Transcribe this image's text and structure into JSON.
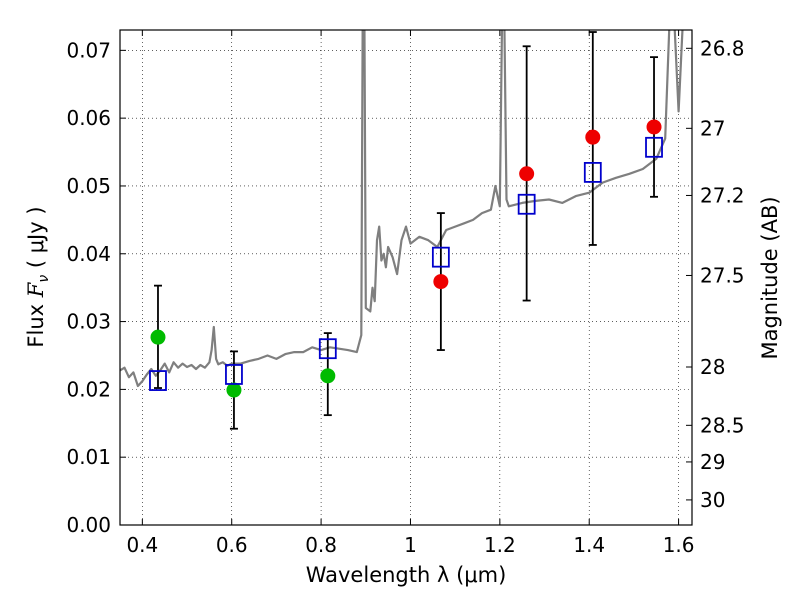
{
  "chart_data": {
    "type": "scatter",
    "xlabel": "Wavelength  λ (μm)",
    "ylabel_left_prefix": "Flux ",
    "ylabel_left_symbol": "F",
    "ylabel_left_sub": "ν",
    "ylabel_left_unit": " ( μJy )",
    "ylabel_right": "Magnitude (AB)",
    "xlim": [
      0.35,
      1.63
    ],
    "ylim": [
      0.0,
      0.073
    ],
    "xticks": [
      {
        "value": 0.4,
        "label": "0.4"
      },
      {
        "value": 0.6,
        "label": "0.6"
      },
      {
        "value": 0.8,
        "label": "0.8"
      },
      {
        "value": 1.0,
        "label": "1"
      },
      {
        "value": 1.2,
        "label": "1.2"
      },
      {
        "value": 1.4,
        "label": "1.4"
      },
      {
        "value": 1.6,
        "label": "1.6"
      }
    ],
    "yticks": [
      {
        "value": 0.0,
        "label": "0.00"
      },
      {
        "value": 0.01,
        "label": "0.01"
      },
      {
        "value": 0.02,
        "label": "0.02"
      },
      {
        "value": 0.03,
        "label": "0.03"
      },
      {
        "value": 0.04,
        "label": "0.04"
      },
      {
        "value": 0.05,
        "label": "0.05"
      },
      {
        "value": 0.06,
        "label": "0.06"
      },
      {
        "value": 0.07,
        "label": "0.07"
      }
    ],
    "right_ticks": [
      {
        "label": "26.8",
        "flux": 0.0703
      },
      {
        "label": "27",
        "flux": 0.0585
      },
      {
        "label": "27.2",
        "flux": 0.0486
      },
      {
        "label": "27.5",
        "flux": 0.0368
      },
      {
        "label": "28",
        "flux": 0.0233
      },
      {
        "label": "28.5",
        "flux": 0.0147
      },
      {
        "label": "29",
        "flux": 0.0093
      },
      {
        "label": "30",
        "flux": 0.0037
      }
    ],
    "grid": true,
    "template_spectrum": {
      "color": "#7f7f7f",
      "points": [
        [
          0.35,
          0.0228
        ],
        [
          0.36,
          0.0232
        ],
        [
          0.37,
          0.0218
        ],
        [
          0.38,
          0.0225
        ],
        [
          0.39,
          0.0205
        ],
        [
          0.4,
          0.0212
        ],
        [
          0.41,
          0.0222
        ],
        [
          0.42,
          0.023
        ],
        [
          0.43,
          0.022
        ],
        [
          0.44,
          0.0228
        ],
        [
          0.45,
          0.0238
        ],
        [
          0.46,
          0.0225
        ],
        [
          0.47,
          0.024
        ],
        [
          0.48,
          0.0232
        ],
        [
          0.49,
          0.0238
        ],
        [
          0.5,
          0.0233
        ],
        [
          0.51,
          0.0236
        ],
        [
          0.52,
          0.023
        ],
        [
          0.53,
          0.0236
        ],
        [
          0.54,
          0.0232
        ],
        [
          0.55,
          0.024
        ],
        [
          0.555,
          0.0258
        ],
        [
          0.56,
          0.0292
        ],
        [
          0.565,
          0.0245
        ],
        [
          0.57,
          0.0237
        ],
        [
          0.58,
          0.024
        ],
        [
          0.59,
          0.0235
        ],
        [
          0.6,
          0.0238
        ],
        [
          0.62,
          0.0238
        ],
        [
          0.64,
          0.0242
        ],
        [
          0.66,
          0.0245
        ],
        [
          0.68,
          0.025
        ],
        [
          0.7,
          0.0245
        ],
        [
          0.72,
          0.0252
        ],
        [
          0.74,
          0.0255
        ],
        [
          0.76,
          0.0255
        ],
        [
          0.78,
          0.0262
        ],
        [
          0.8,
          0.0258
        ],
        [
          0.82,
          0.0262
        ],
        [
          0.84,
          0.026
        ],
        [
          0.86,
          0.0258
        ],
        [
          0.88,
          0.0255
        ],
        [
          0.89,
          0.028
        ],
        [
          0.893,
          0.075
        ],
        [
          0.897,
          0.075
        ],
        [
          0.9,
          0.032
        ],
        [
          0.91,
          0.0315
        ],
        [
          0.915,
          0.035
        ],
        [
          0.92,
          0.033
        ],
        [
          0.925,
          0.042
        ],
        [
          0.93,
          0.044
        ],
        [
          0.935,
          0.039
        ],
        [
          0.94,
          0.04
        ],
        [
          0.945,
          0.038
        ],
        [
          0.95,
          0.041
        ],
        [
          0.96,
          0.0395
        ],
        [
          0.97,
          0.037
        ],
        [
          0.98,
          0.042
        ],
        [
          0.99,
          0.044
        ],
        [
          1.0,
          0.0415
        ],
        [
          1.02,
          0.0425
        ],
        [
          1.04,
          0.042
        ],
        [
          1.06,
          0.041
        ],
        [
          1.08,
          0.0435
        ],
        [
          1.1,
          0.044
        ],
        [
          1.12,
          0.0445
        ],
        [
          1.14,
          0.045
        ],
        [
          1.16,
          0.046
        ],
        [
          1.18,
          0.0465
        ],
        [
          1.19,
          0.05
        ],
        [
          1.2,
          0.047
        ],
        [
          1.205,
          0.075
        ],
        [
          1.21,
          0.075
        ],
        [
          1.215,
          0.048
        ],
        [
          1.22,
          0.047
        ],
        [
          1.25,
          0.0475
        ],
        [
          1.28,
          0.0478
        ],
        [
          1.31,
          0.048
        ],
        [
          1.34,
          0.0475
        ],
        [
          1.37,
          0.0485
        ],
        [
          1.4,
          0.049
        ],
        [
          1.43,
          0.0505
        ],
        [
          1.46,
          0.0512
        ],
        [
          1.49,
          0.0518
        ],
        [
          1.52,
          0.0525
        ],
        [
          1.55,
          0.054
        ],
        [
          1.57,
          0.057
        ],
        [
          1.58,
          0.075
        ],
        [
          1.59,
          0.075
        ],
        [
          1.6,
          0.061
        ],
        [
          1.61,
          0.075
        ],
        [
          1.62,
          0.075
        ]
      ]
    },
    "series": [
      {
        "marker": "circle",
        "color": "#00bb00",
        "points": [
          {
            "x": 0.435,
            "y": 0.0277
          },
          {
            "x": 0.605,
            "y": 0.0199
          },
          {
            "x": 0.815,
            "y": 0.022
          }
        ]
      },
      {
        "marker": "circle",
        "color": "#ee0000",
        "points": [
          {
            "x": 1.068,
            "y": 0.0359
          },
          {
            "x": 1.26,
            "y": 0.0518
          },
          {
            "x": 1.408,
            "y": 0.0572
          },
          {
            "x": 1.545,
            "y": 0.0587
          }
        ]
      },
      {
        "marker": "open-square",
        "color": "#0000cc",
        "points": [
          {
            "x": 0.435,
            "y": 0.0213
          },
          {
            "x": 0.605,
            "y": 0.0222
          },
          {
            "x": 0.815,
            "y": 0.026
          },
          {
            "x": 1.068,
            "y": 0.0395
          },
          {
            "x": 1.26,
            "y": 0.0473
          },
          {
            "x": 1.408,
            "y": 0.052
          },
          {
            "x": 1.545,
            "y": 0.0557
          }
        ]
      }
    ],
    "errorbars": {
      "color": "#000000",
      "items": [
        {
          "x": 0.435,
          "low": 0.0202,
          "high": 0.0353
        },
        {
          "x": 0.605,
          "low": 0.0142,
          "high": 0.0256
        },
        {
          "x": 0.815,
          "low": 0.0162,
          "high": 0.0283
        },
        {
          "x": 1.068,
          "low": 0.0258,
          "high": 0.046
        },
        {
          "x": 1.26,
          "low": 0.0331,
          "high": 0.0706
        },
        {
          "x": 1.408,
          "low": 0.0413,
          "high": 0.0727
        },
        {
          "x": 1.545,
          "low": 0.0484,
          "high": 0.069
        }
      ]
    }
  }
}
